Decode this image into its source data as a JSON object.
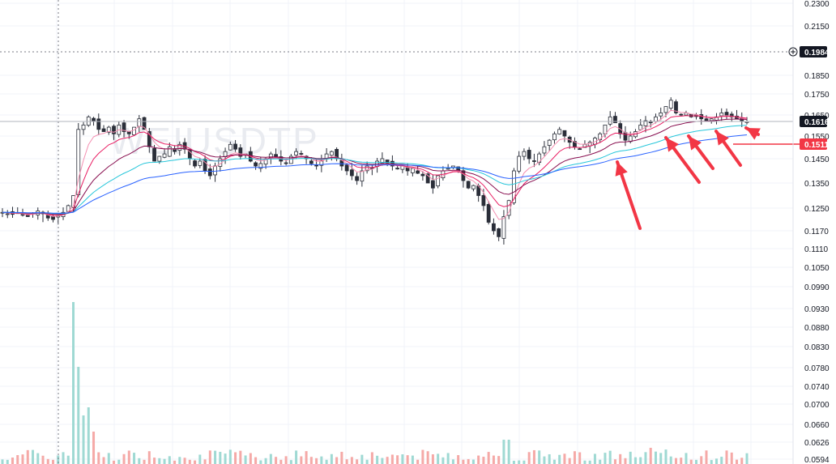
{
  "chart_data": {
    "type": "candlestick",
    "watermark": "WEIUSDTP",
    "price_axis": {
      "ticks": [
        "0.2300",
        "0.2150",
        "0.1984",
        "0.1850",
        "0.1750",
        "0.1650",
        "0.1616",
        "0.1550",
        "0.1511",
        "0.1450",
        "0.1350",
        "0.1250",
        "0.1170",
        "0.1110",
        "0.1050",
        "0.0990",
        "0.0930",
        "0.0880",
        "0.0830",
        "0.0780",
        "0.0740",
        "0.0700",
        "0.0660",
        "0.0626",
        "0.0594"
      ],
      "plain_ticks": [
        "0.2300",
        "0.2150",
        "0.1850",
        "0.1750",
        "0.1650",
        "0.1550",
        "0.1450",
        "0.1350",
        "0.1250",
        "0.1170",
        "0.1110",
        "0.1050",
        "0.0990",
        "0.0930",
        "0.0880",
        "0.0830",
        "0.0780",
        "0.0740",
        "0.0700",
        "0.0660",
        "0.0626",
        "0.0594"
      ]
    },
    "markers": {
      "crosshair_price": "0.1984",
      "last_price": "0.1616",
      "ma_price": "0.1511"
    },
    "colors": {
      "up": "#26a69a",
      "down": "#ef5350",
      "candle": "#2a2e39",
      "ma_fast": "#f48fb1",
      "ma_mid": "#e91e63",
      "ma_slow1": "#880e4f",
      "ma_slow2": "#26c6da",
      "ma_slow3": "#2962ff",
      "arrow": "#f23645",
      "last_tag": "#131722",
      "ma_tag": "#f23645"
    },
    "series_note": "",
    "close_path": [
      0.1235,
      0.123,
      0.1228,
      0.1233,
      0.1225,
      0.122,
      0.1232,
      0.124,
      0.123,
      0.1215,
      0.121,
      0.1225,
      0.1235,
      0.126,
      0.13,
      0.158,
      0.16,
      0.164,
      0.162,
      0.158,
      0.157,
      0.159,
      0.156,
      0.16,
      0.157,
      0.156,
      0.159,
      0.163,
      0.158,
      0.15,
      0.144,
      0.146,
      0.147,
      0.15,
      0.148,
      0.151,
      0.149,
      0.145,
      0.142,
      0.144,
      0.14,
      0.138,
      0.142,
      0.145,
      0.148,
      0.151,
      0.149,
      0.146,
      0.147,
      0.144,
      0.142,
      0.143,
      0.145,
      0.147,
      0.146,
      0.144,
      0.143,
      0.146,
      0.148,
      0.147,
      0.145,
      0.143,
      0.142,
      0.144,
      0.147,
      0.148,
      0.145,
      0.142,
      0.14,
      0.138,
      0.136,
      0.14,
      0.142,
      0.141,
      0.144,
      0.145,
      0.143,
      0.142,
      0.141,
      0.142,
      0.14,
      0.141,
      0.139,
      0.138,
      0.135,
      0.133,
      0.138,
      0.14,
      0.141,
      0.142,
      0.14,
      0.136,
      0.133,
      0.134,
      0.13,
      0.126,
      0.12,
      0.117,
      0.115,
      0.122,
      0.128,
      0.14,
      0.146,
      0.148,
      0.145,
      0.144,
      0.147,
      0.15,
      0.153,
      0.156,
      0.158,
      0.155,
      0.152,
      0.15,
      0.149,
      0.151,
      0.152,
      0.154,
      0.156,
      0.16,
      0.164,
      0.161,
      0.156,
      0.153,
      0.155,
      0.157,
      0.16,
      0.162,
      0.161,
      0.164,
      0.166,
      0.169,
      0.172,
      0.166,
      0.165,
      0.166,
      0.164,
      0.165,
      0.163,
      0.162,
      0.163,
      0.164,
      0.166,
      0.165,
      0.164,
      0.163,
      0.162,
      0.1616
    ]
  }
}
